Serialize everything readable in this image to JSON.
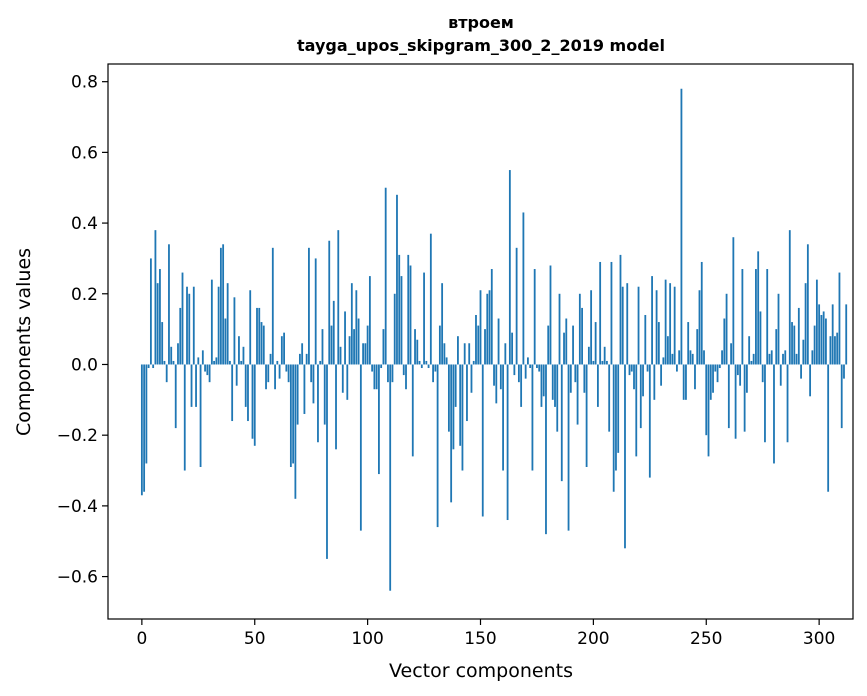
{
  "chart_data": {
    "type": "bar",
    "title_line1": "втроем",
    "title_line2": "tayga_upos_skipgram_300_2_2019 model",
    "xlabel": "Vector components",
    "ylabel": "Components values",
    "xlim": [
      -15,
      315
    ],
    "ylim": [
      -0.72,
      0.85
    ],
    "xticks": [
      0,
      50,
      100,
      150,
      200,
      250,
      300
    ],
    "xtick_labels": [
      "0",
      "50",
      "100",
      "150",
      "200",
      "250",
      "300"
    ],
    "yticks": [
      -0.6,
      -0.4,
      -0.2,
      0.0,
      0.2,
      0.4,
      0.6,
      0.8
    ],
    "ytick_labels": [
      "−0.6",
      "−0.4",
      "−0.2",
      "0.0",
      "0.2",
      "0.4",
      "0.6",
      "0.8"
    ],
    "grid": false,
    "bar_color": "#1f77b4",
    "values": [
      -0.37,
      -0.36,
      -0.28,
      -0.01,
      0.3,
      -0.01,
      0.38,
      0.23,
      0.27,
      0.12,
      0.01,
      -0.05,
      0.34,
      0.05,
      0.01,
      -0.18,
      0.06,
      0.16,
      0.26,
      -0.3,
      0.22,
      0.2,
      -0.12,
      0.22,
      -0.12,
      0.02,
      -0.29,
      0.04,
      -0.02,
      -0.03,
      -0.05,
      0.24,
      0.01,
      0.02,
      0.22,
      0.33,
      0.34,
      0.13,
      0.23,
      0.01,
      -0.16,
      0.19,
      -0.06,
      0.08,
      0.01,
      0.05,
      -0.12,
      -0.16,
      0.21,
      -0.21,
      -0.23,
      0.16,
      0.16,
      0.12,
      0.11,
      -0.07,
      -0.05,
      0.03,
      0.33,
      -0.07,
      0.01,
      -0.04,
      0.08,
      0.09,
      -0.02,
      -0.05,
      -0.29,
      -0.28,
      -0.38,
      -0.17,
      0.03,
      0.06,
      -0.14,
      0.03,
      0.33,
      -0.05,
      -0.11,
      0.3,
      -0.22,
      0.01,
      0.1,
      -0.17,
      -0.55,
      0.35,
      0.11,
      0.18,
      -0.24,
      0.38,
      0.05,
      -0.08,
      0.15,
      -0.1,
      0.08,
      0.23,
      0.1,
      0.21,
      0.13,
      -0.47,
      0.06,
      0.06,
      0.11,
      0.25,
      -0.02,
      -0.07,
      -0.07,
      -0.31,
      -0.01,
      0.1,
      0.5,
      -0.05,
      -0.64,
      -0.05,
      0.2,
      0.48,
      0.31,
      0.25,
      -0.03,
      -0.07,
      0.31,
      0.28,
      -0.26,
      0.1,
      0.07,
      0.01,
      -0.01,
      0.26,
      0.01,
      -0.01,
      0.37,
      -0.05,
      -0.02,
      -0.46,
      0.11,
      0.23,
      0.06,
      0.02,
      -0.19,
      -0.39,
      -0.24,
      -0.12,
      0.08,
      -0.23,
      -0.3,
      0.06,
      -0.16,
      0.06,
      -0.08,
      0.01,
      0.14,
      0.11,
      0.21,
      -0.43,
      0.1,
      0.2,
      0.21,
      0.27,
      -0.06,
      -0.11,
      0.13,
      -0.07,
      -0.3,
      0.06,
      -0.44,
      0.55,
      0.09,
      -0.03,
      0.33,
      -0.05,
      -0.12,
      0.43,
      -0.04,
      0.02,
      -0.01,
      -0.3,
      0.27,
      -0.01,
      -0.02,
      -0.12,
      -0.09,
      -0.48,
      0.11,
      0.28,
      -0.1,
      -0.12,
      -0.19,
      0.2,
      -0.33,
      0.09,
      0.13,
      -0.47,
      -0.08,
      0.11,
      -0.05,
      -0.17,
      0.2,
      0.16,
      -0.08,
      -0.29,
      0.05,
      0.21,
      0.01,
      0.12,
      -0.12,
      0.29,
      0.01,
      0.05,
      0.01,
      -0.19,
      0.29,
      -0.36,
      -0.3,
      -0.25,
      0.31,
      0.22,
      -0.52,
      0.23,
      -0.03,
      -0.02,
      -0.07,
      -0.26,
      0.22,
      -0.18,
      -0.09,
      0.14,
      -0.02,
      -0.32,
      0.25,
      -0.1,
      0.21,
      0.12,
      -0.06,
      0.02,
      0.24,
      0.08,
      0.23,
      0.03,
      0.22,
      -0.02,
      0.04,
      0.78,
      -0.1,
      -0.1,
      0.12,
      0.04,
      0.03,
      -0.07,
      0.1,
      0.21,
      0.29,
      0.04,
      -0.2,
      -0.26,
      -0.1,
      -0.08,
      -0.02,
      -0.05,
      -0.01,
      0.04,
      0.13,
      0.2,
      -0.18,
      0.06,
      0.36,
      -0.21,
      -0.03,
      -0.06,
      0.27,
      -0.19,
      -0.08,
      0.08,
      0.01,
      0.03,
      0.27,
      0.32,
      0.15,
      -0.05,
      -0.22,
      0.27,
      0.03,
      0.04,
      -0.28,
      0.1,
      0.2,
      -0.06,
      0.03,
      0.04,
      -0.22,
      0.38,
      0.12,
      0.11,
      0.03,
      0.16,
      -0.04,
      0.07,
      0.23,
      0.34,
      -0.09,
      0.04,
      0.11,
      0.24,
      0.17,
      0.14,
      0.15,
      0.13,
      -0.36,
      0.08,
      0.17,
      0.08,
      0.09,
      0.26,
      -0.18,
      -0.04,
      0.17
    ]
  }
}
